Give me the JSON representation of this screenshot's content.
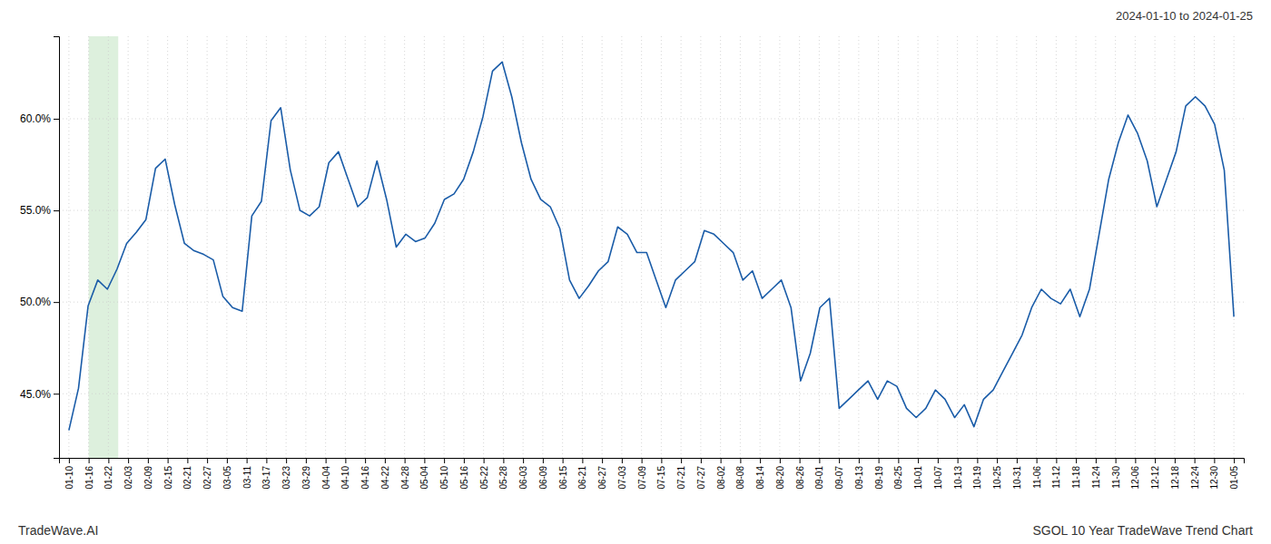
{
  "chart_data": {
    "type": "line",
    "title": "SGOL 10 Year TradeWave Trend Chart",
    "subtitle": "2024-01-10 to 2024-01-25",
    "annotations": [
      "TradeWave.AI"
    ],
    "color": "#1a5ca8",
    "grid": true,
    "shade": {
      "x": [
        1,
        2.5
      ],
      "color": "#ddf0dd"
    },
    "xlim": [
      -0.5,
      59.5
    ],
    "xticks": [
      {
        "value": 0,
        "label": "01-10"
      },
      {
        "value": 1,
        "label": "01-16"
      },
      {
        "value": 2,
        "label": "01-22"
      },
      {
        "value": 3,
        "label": "02-03"
      },
      {
        "value": 4,
        "label": "02-09"
      },
      {
        "value": 5,
        "label": "02-15"
      },
      {
        "value": 6,
        "label": "02-21"
      },
      {
        "value": 7,
        "label": "02-27"
      },
      {
        "value": 8,
        "label": "03-05"
      },
      {
        "value": 9,
        "label": "03-11"
      },
      {
        "value": 10,
        "label": "03-17"
      },
      {
        "value": 11,
        "label": "03-23"
      },
      {
        "value": 12,
        "label": "03-29"
      },
      {
        "value": 13,
        "label": "04-04"
      },
      {
        "value": 14,
        "label": "04-10"
      },
      {
        "value": 15,
        "label": "04-16"
      },
      {
        "value": 16,
        "label": "04-22"
      },
      {
        "value": 17,
        "label": "04-28"
      },
      {
        "value": 18,
        "label": "05-04"
      },
      {
        "value": 19,
        "label": "05-10"
      },
      {
        "value": 20,
        "label": "05-16"
      },
      {
        "value": 21,
        "label": "05-22"
      },
      {
        "value": 22,
        "label": "05-28"
      },
      {
        "value": 23,
        "label": "06-03"
      },
      {
        "value": 24,
        "label": "06-09"
      },
      {
        "value": 25,
        "label": "06-15"
      },
      {
        "value": 26,
        "label": "06-21"
      },
      {
        "value": 27,
        "label": "06-27"
      },
      {
        "value": 28,
        "label": "07-03"
      },
      {
        "value": 29,
        "label": "07-09"
      },
      {
        "value": 30,
        "label": "07-15"
      },
      {
        "value": 31,
        "label": "07-21"
      },
      {
        "value": 32,
        "label": "07-27"
      },
      {
        "value": 33,
        "label": "08-02"
      },
      {
        "value": 34,
        "label": "08-08"
      },
      {
        "value": 35,
        "label": "08-14"
      },
      {
        "value": 36,
        "label": "08-20"
      },
      {
        "value": 37,
        "label": "08-26"
      },
      {
        "value": 38,
        "label": "09-01"
      },
      {
        "value": 39,
        "label": "09-07"
      },
      {
        "value": 40,
        "label": "09-13"
      },
      {
        "value": 41,
        "label": "09-19"
      },
      {
        "value": 42,
        "label": "09-25"
      },
      {
        "value": 43,
        "label": "10-01"
      },
      {
        "value": 44,
        "label": "10-07"
      },
      {
        "value": 45,
        "label": "10-13"
      },
      {
        "value": 46,
        "label": "10-19"
      },
      {
        "value": 47,
        "label": "10-25"
      },
      {
        "value": 48,
        "label": "10-31"
      },
      {
        "value": 49,
        "label": "11-06"
      },
      {
        "value": 50,
        "label": "11-12"
      },
      {
        "value": 51,
        "label": "11-18"
      },
      {
        "value": 52,
        "label": "11-24"
      },
      {
        "value": 53,
        "label": "11-30"
      },
      {
        "value": 54,
        "label": "12-06"
      },
      {
        "value": 55,
        "label": "12-12"
      },
      {
        "value": 56,
        "label": "12-18"
      },
      {
        "value": 57,
        "label": "12-24"
      },
      {
        "value": 58,
        "label": "12-30"
      },
      {
        "value": 59,
        "label": "01-05"
      }
    ],
    "ylim": [
      41.5,
      64.5
    ],
    "yticks": [
      {
        "value": 45.0,
        "label": "45.0%"
      },
      {
        "value": 50.0,
        "label": "50.0%"
      },
      {
        "value": 55.0,
        "label": "55.0%"
      },
      {
        "value": 60.0,
        "label": "60.0%"
      }
    ],
    "x": [
      0,
      0.487603,
      0.975207,
      1.46281,
      1.950413,
      2.438017,
      2.92562,
      3.413223,
      3.900826,
      4.38843,
      4.876033,
      5.363636,
      5.85124,
      6.338843,
      6.826446,
      7.31405,
      7.801653,
      8.289256,
      8.77686,
      9.264463,
      9.752066,
      10.239669,
      10.727273,
      11.214876,
      11.702479,
      12.190083,
      12.677686,
      13.165289,
      13.652893,
      14.140496,
      14.628099,
      15.115702,
      15.603306,
      16.090909,
      16.578512,
      17.066116,
      17.553719,
      18.041322,
      18.528926,
      19.016529,
      19.504132,
      19.991736,
      20.479339,
      20.966942,
      21.454545,
      21.942149,
      22.429752,
      22.917355,
      23.404959,
      23.892562,
      24.380165,
      24.867769,
      25.355372,
      25.842975,
      26.330579,
      26.818182,
      27.305785,
      27.793388,
      28.280992,
      28.768595,
      29.256198,
      29.743802,
      30.231405,
      30.719008,
      31.206612,
      31.694215,
      32.181818,
      32.669421,
      33.157025,
      33.644628,
      34.132231,
      34.619835,
      35.107438,
      35.595041,
      36.082645,
      36.570248,
      37.057851,
      37.545455,
      38.033058,
      38.520661,
      39.008264,
      39.495868,
      39.983471,
      40.471074,
      40.958678,
      41.446281,
      41.933884,
      42.421488,
      42.909091,
      43.396694,
      43.884298,
      44.371901,
      44.859504,
      45.347107,
      45.834711,
      46.322314,
      46.809917,
      47.297521,
      47.785124,
      48.272727,
      48.760331,
      49.247934,
      49.735537,
      50.22314,
      50.710744,
      51.198347,
      51.68595,
      52.173554,
      52.661157,
      53.14876,
      53.636364,
      54.123967,
      54.61157,
      55.099174,
      55.586777,
      56.07438,
      56.561983,
      57.049587,
      57.53719,
      58.024793,
      58.512397,
      59
    ],
    "values": [
      43.0,
      45.3,
      49.8,
      51.2,
      50.7,
      51.8,
      53.2,
      53.8,
      54.5,
      57.3,
      57.8,
      55.3,
      53.2,
      52.8,
      52.6,
      52.3,
      50.3,
      49.7,
      49.5,
      54.7,
      55.5,
      59.9,
      60.6,
      57.2,
      55.0,
      54.7,
      55.2,
      57.6,
      58.2,
      56.7,
      55.2,
      55.7,
      57.7,
      55.6,
      53.0,
      53.7,
      53.3,
      53.5,
      54.3,
      55.6,
      55.9,
      56.7,
      58.2,
      60.1,
      62.6,
      63.1,
      61.2,
      58.7,
      56.7,
      55.6,
      55.2,
      54.0,
      51.2,
      50.2,
      50.9,
      51.7,
      52.2,
      54.1,
      53.7,
      52.7,
      52.7,
      51.2,
      49.7,
      51.2,
      51.7,
      52.2,
      53.9,
      53.7,
      53.2,
      52.7,
      51.2,
      51.7,
      50.2,
      50.7,
      51.2,
      49.7,
      45.7,
      47.2,
      49.7,
      50.2,
      44.2,
      44.7,
      45.2,
      45.7,
      44.7,
      45.7,
      45.4,
      44.2,
      43.7,
      44.2,
      45.2,
      44.7,
      43.7,
      44.4,
      43.2,
      44.7,
      45.2,
      46.2,
      47.2,
      48.2,
      49.7,
      50.7,
      50.2,
      49.9,
      50.7,
      49.2,
      50.7,
      53.7,
      56.7,
      58.7,
      60.2,
      59.2,
      57.7,
      55.2,
      56.7,
      58.2,
      60.7,
      61.2,
      60.7,
      59.7,
      57.2,
      49.2
    ]
  }
}
